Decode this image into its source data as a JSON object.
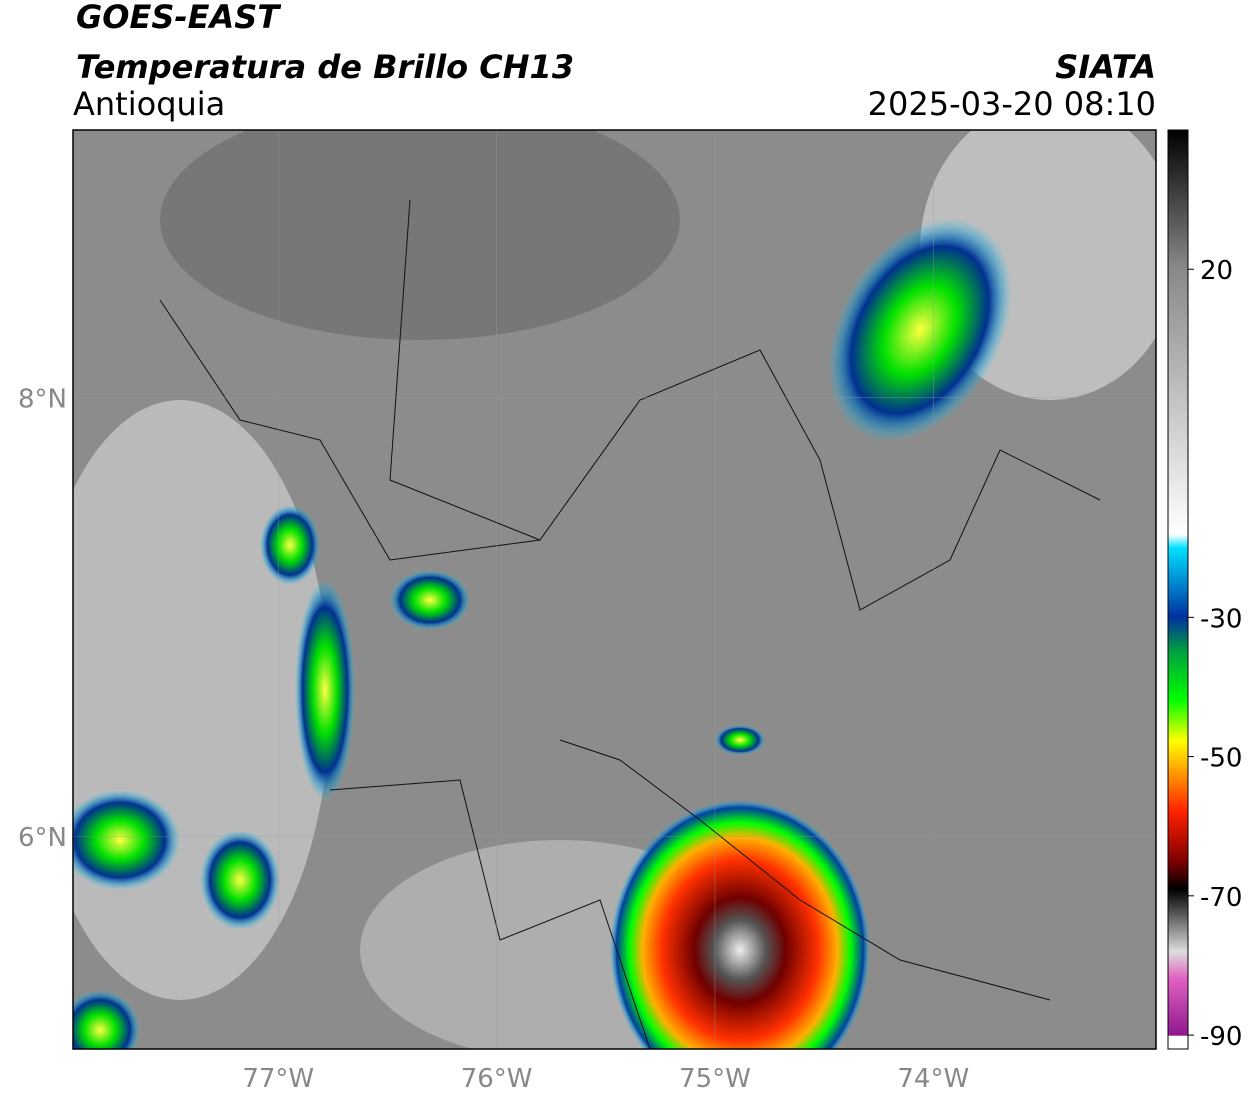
{
  "header": {
    "satellite": "GOES-EAST",
    "product": "Temperatura de Brillo CH13",
    "region": "Antioquia",
    "source": "SIATA",
    "datetime": "2025-03-20 08:10"
  },
  "map": {
    "xlim": [
      -77.94,
      -72.98
    ],
    "ylim": [
      5.03,
      9.22
    ],
    "xticks": [
      {
        "value": -77,
        "label": "77°W"
      },
      {
        "value": -76,
        "label": "76°W"
      },
      {
        "value": -75,
        "label": "75°W"
      },
      {
        "value": -74,
        "label": "74°W"
      }
    ],
    "yticks": [
      {
        "value": 8,
        "label": "8°N"
      },
      {
        "value": 6,
        "label": "6°N"
      }
    ]
  },
  "colorbar": {
    "lim": [
      -92,
      40
    ],
    "ticks": [
      20,
      -30,
      -50,
      -70,
      -90
    ]
  }
}
